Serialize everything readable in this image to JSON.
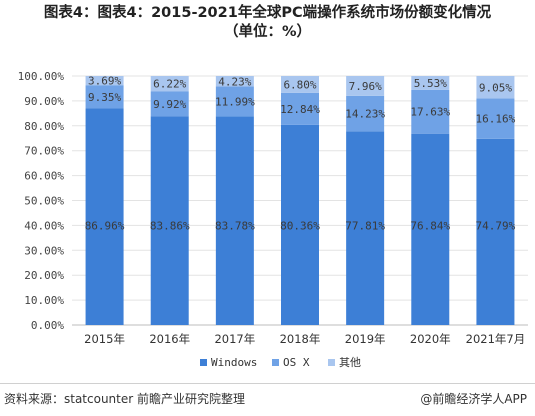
{
  "title_line1": "图表4：图表4：2015-2021年全球PC端操作系统市场份额变化情况",
  "title_line2": "（单位：%）",
  "source": "资料来源：statcounter 前瞻产业研究院整理",
  "brand": "@前瞻经济学人APP",
  "colors": {
    "windows": "#3d7fd6",
    "osx": "#6fa2e6",
    "other": "#a9c6ef"
  },
  "chart_data": {
    "type": "bar",
    "stacked": true,
    "categories": [
      "2015年",
      "2016年",
      "2017年",
      "2018年",
      "2019年",
      "2020年",
      "2021年7月"
    ],
    "series": [
      {
        "name": "Windows",
        "values": [
          86.96,
          83.86,
          83.78,
          80.36,
          77.81,
          76.84,
          74.79
        ]
      },
      {
        "name": "OS X",
        "values": [
          9.35,
          9.92,
          11.99,
          12.84,
          14.23,
          17.63,
          16.16
        ]
      },
      {
        "name": "其他",
        "values": [
          3.69,
          6.22,
          4.23,
          6.8,
          7.96,
          5.53,
          9.05
        ]
      }
    ],
    "value_labels": [
      [
        "86.96%",
        "83.86%",
        "83.78%",
        "80.36%",
        "77.81%",
        "76.84%",
        "74.79%"
      ],
      [
        "9.35%",
        "9.92%",
        "11.99%",
        "12.84%",
        "14.23%",
        "17.63%",
        "16.16%"
      ],
      [
        "3.69%",
        "6.22%",
        "4.23%",
        "6.80%",
        "7.96%",
        "5.53%",
        "9.05%"
      ]
    ],
    "yticks": [
      "0.00%",
      "10.00%",
      "20.00%",
      "30.00%",
      "40.00%",
      "50.00%",
      "60.00%",
      "70.00%",
      "80.00%",
      "90.00%",
      "100.00%"
    ],
    "ylim": [
      0,
      100
    ],
    "grid": true,
    "legend_position": "bottom"
  }
}
